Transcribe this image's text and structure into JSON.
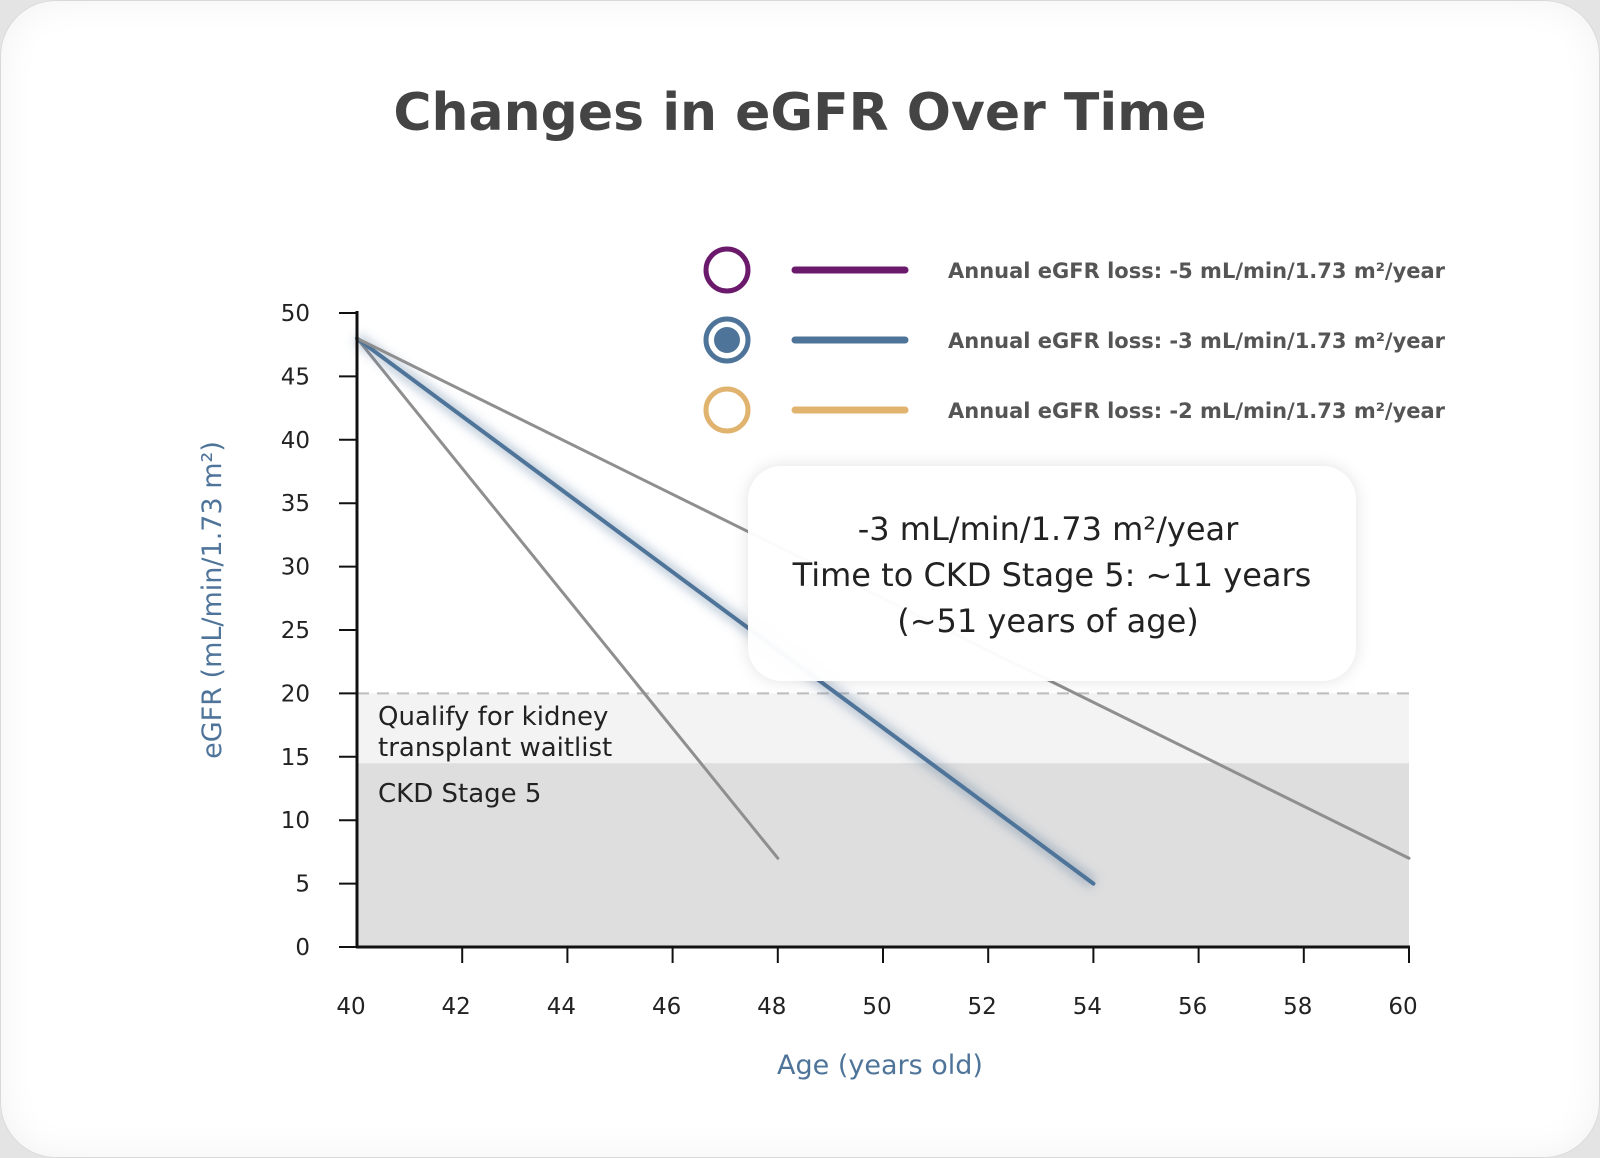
{
  "colors": {
    "purple": "#6b1a6b",
    "blue": "#4f7499",
    "gold": "#e0b36e",
    "gray_line": "#8f8f8f",
    "zone_light": "#f3f3f3",
    "zone_dark": "#dedede",
    "axis_title": "#4f7499"
  },
  "legend": [
    {
      "marker": "hollow-circle-icon",
      "color": "#6b1a6b",
      "label": "Annual eGFR loss: -5 mL/min/1.73 m²/year"
    },
    {
      "marker": "filled-circle-icon",
      "color": "#4f7499",
      "label": "Annual eGFR loss: -3 mL/min/1.73 m²/year"
    },
    {
      "marker": "hollow-circle-icon",
      "color": "#e0b36e",
      "label": "Annual eGFR loss: -2 mL/min/1.73 m²/year"
    }
  ],
  "zones": {
    "transplant": {
      "label_line1": "Qualify for kidney",
      "label_line2": "transplant waitlist",
      "from": 14.5,
      "to": 20
    },
    "stage5": {
      "label": "CKD Stage 5",
      "from": 0,
      "to": 14.5
    }
  },
  "callout": {
    "line1": "-3 mL/min/1.73 m²/year",
    "line2": "Time to CKD Stage 5: ~11 years",
    "line3": "(~51 years of age)"
  },
  "chart_data": {
    "type": "line",
    "title": "Changes in eGFR Over Time",
    "xlabel": "Age (years old)",
    "ylabel": "eGFR (mL/min/1.73 m²)",
    "xlim": [
      40,
      60
    ],
    "ylim": [
      0,
      50
    ],
    "xticks": [
      40,
      42,
      44,
      46,
      48,
      50,
      52,
      54,
      56,
      58,
      60
    ],
    "yticks": [
      0,
      5,
      10,
      15,
      20,
      25,
      30,
      35,
      40,
      45,
      50
    ],
    "grid": false,
    "legend_position": "top-right",
    "reference_line": {
      "y": 20,
      "style": "dashed"
    },
    "series": [
      {
        "name": "Annual eGFR loss: -5 mL/min/1.73 m²/year",
        "x": [
          40,
          48
        ],
        "y": [
          48,
          7
        ],
        "color": "#8f8f8f",
        "highlighted": false
      },
      {
        "name": "Annual eGFR loss: -3 mL/min/1.73 m²/year",
        "x": [
          40,
          54
        ],
        "y": [
          48,
          5
        ],
        "color": "#4f7499",
        "highlighted": true
      },
      {
        "name": "Annual eGFR loss: -2 mL/min/1.73 m²/year",
        "x": [
          40,
          60
        ],
        "y": [
          48,
          7
        ],
        "color": "#8f8f8f",
        "highlighted": false
      }
    ]
  }
}
